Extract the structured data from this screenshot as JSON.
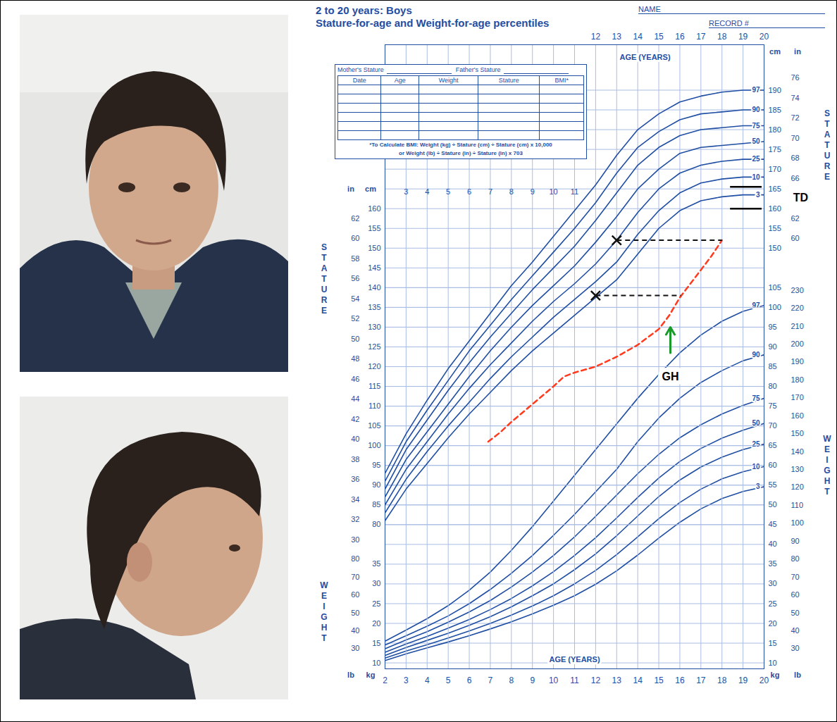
{
  "chart_data": [
    {
      "type": "line",
      "title": "2 to 20 years: Boys",
      "subtitle": "Stature-for-age and Weight-for-age percentiles",
      "name_field": "NAME",
      "record_field": "RECORD #",
      "record_table": {
        "parents": [
          "Mother's Stature",
          "Father's Stature"
        ],
        "columns": [
          "Date",
          "Age",
          "Weight",
          "Stature",
          "BMI*"
        ],
        "note": [
          "*To Calculate BMI: Weight (kg) ÷ Stature (cm) ÷ Stature (cm) x 10,000",
          "or Weight (lb) ÷ Stature (in) ÷ Stature (in) x 703"
        ]
      },
      "x_label": "AGE (YEARS)",
      "y_label": "STATURE",
      "unit_labels": {
        "left": [
          "in",
          "cm"
        ],
        "right": [
          "cm",
          "in"
        ]
      },
      "xlim": [
        2,
        20
      ],
      "xticks": [
        2,
        3,
        4,
        5,
        6,
        7,
        8,
        9,
        10,
        11,
        12,
        13,
        14,
        15,
        16,
        17,
        18,
        19,
        20
      ],
      "x2ticks": [
        12,
        13,
        14,
        15,
        16,
        17,
        18,
        19,
        20
      ],
      "x3ticks": [
        3,
        4,
        5,
        6,
        7,
        8,
        9,
        10,
        11
      ],
      "ylim": [
        43.5,
        201.5
      ],
      "yticks": [
        80,
        85,
        90,
        95,
        100,
        105,
        110,
        115,
        120,
        125,
        130,
        135,
        140,
        145,
        150,
        155,
        160
      ],
      "y2ticks": [
        150,
        155,
        160,
        165,
        170,
        175,
        180,
        185,
        190
      ],
      "yticks_alt": [
        {
          "value": 76.2,
          "label": "30"
        },
        {
          "value": 81.28,
          "label": "32"
        },
        {
          "value": 86.36,
          "label": "34"
        },
        {
          "value": 91.44,
          "label": "36"
        },
        {
          "value": 96.52,
          "label": "38"
        },
        {
          "value": 101.6,
          "label": "40"
        },
        {
          "value": 106.68,
          "label": "42"
        },
        {
          "value": 111.76,
          "label": "44"
        },
        {
          "value": 116.84,
          "label": "46"
        },
        {
          "value": 121.92,
          "label": "48"
        },
        {
          "value": 127,
          "label": "50"
        },
        {
          "value": 132.08,
          "label": "52"
        },
        {
          "value": 137.16,
          "label": "54"
        },
        {
          "value": 142.24,
          "label": "56"
        },
        {
          "value": 147.32,
          "label": "58"
        },
        {
          "value": 152.4,
          "label": "60"
        },
        {
          "value": 157.48,
          "label": "62"
        }
      ],
      "y2ticks_alt": [
        {
          "value": 152.4,
          "label": "60"
        },
        {
          "value": 157.48,
          "label": "62"
        },
        {
          "value": 167.64,
          "label": "66"
        },
        {
          "value": 172.72,
          "label": "68"
        },
        {
          "value": 177.8,
          "label": "70"
        },
        {
          "value": 182.88,
          "label": "72"
        },
        {
          "value": 187.96,
          "label": "74"
        },
        {
          "value": 193.04,
          "label": "76"
        }
      ],
      "grid": true,
      "x": [
        2,
        3,
        4,
        5,
        6,
        7,
        8,
        9,
        10,
        11,
        12,
        13,
        14,
        15,
        16,
        17,
        18,
        19,
        20
      ],
      "series": [
        {
          "name": "97",
          "color": "#1f4ea3",
          "values": [
            93,
            103,
            111.5,
            119.5,
            126.5,
            133.5,
            140.5,
            146.5,
            153,
            159.5,
            166,
            173.5,
            180,
            184,
            187,
            188.5,
            189.5,
            190,
            190
          ]
        },
        {
          "name": "90",
          "color": "#1f4ea3",
          "values": [
            91,
            101,
            109,
            116.5,
            124,
            130.5,
            137,
            143,
            149,
            155,
            161.5,
            169,
            175.5,
            179.5,
            182.5,
            184,
            184.5,
            185,
            185
          ]
        },
        {
          "name": "75",
          "color": "#1f4ea3",
          "values": [
            89,
            99,
            106.5,
            114,
            121,
            127.5,
            133.5,
            139.5,
            145,
            150.5,
            157,
            164,
            171,
            175.5,
            178.5,
            180,
            180.5,
            181,
            181
          ]
        },
        {
          "name": "50",
          "color": "#1f4ea3",
          "values": [
            87,
            96.5,
            103.5,
            110.5,
            117.5,
            124,
            130,
            135.5,
            140.5,
            145.5,
            151.5,
            158,
            165,
            170,
            174,
            175.5,
            176,
            176.5,
            177
          ]
        },
        {
          "name": "25",
          "color": "#1f4ea3",
          "values": [
            85,
            94,
            101,
            108,
            114.5,
            120.5,
            126,
            131.5,
            136.5,
            141,
            146,
            152,
            159,
            165,
            169,
            171,
            172,
            172.5,
            172.5
          ]
        },
        {
          "name": "10",
          "color": "#1f4ea3",
          "values": [
            83,
            91.5,
            98.5,
            105,
            111,
            117,
            122.5,
            127.5,
            132.5,
            137,
            141.5,
            146.5,
            153.5,
            159.5,
            164,
            166.5,
            167.5,
            168,
            168
          ]
        },
        {
          "name": "3",
          "color": "#1f4ea3",
          "values": [
            81,
            89,
            95.5,
            102,
            108,
            113.5,
            119,
            124,
            128.5,
            133,
            137.5,
            142,
            148.5,
            155,
            159.5,
            162,
            163,
            163.5,
            163.5
          ]
        }
      ],
      "patient": {
        "color": "#ff3b1f",
        "line_style": "dashed",
        "x": [
          6.9,
          7.5,
          8,
          9,
          10,
          10.5,
          11,
          12,
          13,
          14,
          15,
          15.5,
          16,
          16.5,
          17,
          17.5,
          18
        ],
        "values": [
          101,
          103.5,
          106,
          110.5,
          115,
          117.5,
          118.5,
          120,
          122.5,
          125.5,
          129.5,
          133,
          137.5,
          141,
          144.5,
          148,
          152
        ]
      },
      "bone_age": {
        "marker": "x",
        "line_style": "dashed",
        "color": "#111111",
        "points": [
          {
            "x": 12,
            "y": 138,
            "x_end": 16.05
          },
          {
            "x": 13,
            "y": 152,
            "x_end": 18
          }
        ]
      },
      "target_range": {
        "label": "TD",
        "values": [
          160,
          165.5
        ],
        "x": [
          18.4,
          19.9
        ],
        "color": "#000000"
      },
      "annotations": [
        {
          "text": "GH",
          "x": 15.55,
          "y": [
            123.5,
            130
          ],
          "label_y": 117.5,
          "color": "#1a9a2a"
        }
      ]
    },
    {
      "type": "line",
      "y_label": "WEIGHT",
      "unit_labels": {
        "left": [
          "lb",
          "kg"
        ],
        "right": [
          "kg",
          "lb"
        ]
      },
      "xlim": [
        2,
        20
      ],
      "ylim": [
        8.5,
        166.5
      ],
      "yticks": [
        10,
        15,
        20,
        25,
        30,
        35
      ],
      "y2ticks": [
        10,
        15,
        20,
        25,
        30,
        35,
        40,
        45,
        50,
        55,
        60,
        65,
        70,
        75,
        80,
        85,
        90,
        95,
        100,
        105
      ],
      "yticks_alt": [
        {
          "value": 13.61,
          "label": "30"
        },
        {
          "value": 18.14,
          "label": "40"
        },
        {
          "value": 22.68,
          "label": "50"
        },
        {
          "value": 27.22,
          "label": "60"
        },
        {
          "value": 31.75,
          "label": "70"
        },
        {
          "value": 36.29,
          "label": "80"
        }
      ],
      "y2ticks_alt": [
        {
          "value": 13.61,
          "label": "30"
        },
        {
          "value": 18.14,
          "label": "40"
        },
        {
          "value": 22.68,
          "label": "50"
        },
        {
          "value": 27.22,
          "label": "60"
        },
        {
          "value": 31.75,
          "label": "70"
        },
        {
          "value": 36.29,
          "label": "80"
        },
        {
          "value": 40.82,
          "label": "90"
        },
        {
          "value": 45.36,
          "label": "100"
        },
        {
          "value": 49.9,
          "label": "110"
        },
        {
          "value": 54.43,
          "label": "120"
        },
        {
          "value": 58.97,
          "label": "130"
        },
        {
          "value": 63.5,
          "label": "140"
        },
        {
          "value": 68.04,
          "label": "150"
        },
        {
          "value": 72.57,
          "label": "160"
        },
        {
          "value": 77.11,
          "label": "170"
        },
        {
          "value": 81.65,
          "label": "180"
        },
        {
          "value": 86.18,
          "label": "190"
        },
        {
          "value": 90.72,
          "label": "200"
        },
        {
          "value": 95.25,
          "label": "210"
        },
        {
          "value": 99.79,
          "label": "220"
        },
        {
          "value": 104.33,
          "label": "230"
        }
      ],
      "grid": true,
      "x": [
        2,
        3,
        4,
        5,
        6,
        7,
        8,
        9,
        10,
        11,
        12,
        13,
        14,
        15,
        16,
        17,
        18,
        19,
        20
      ],
      "series": [
        {
          "name": "97",
          "color": "#1f4ea3",
          "values": [
            15.5,
            18.3,
            21.2,
            24.5,
            28.4,
            33,
            38.5,
            44.5,
            51,
            57.5,
            64,
            70.5,
            77,
            83,
            88.5,
            93,
            96.5,
            99,
            100.5
          ]
        },
        {
          "name": "90",
          "color": "#1f4ea3",
          "values": [
            14.5,
            16.9,
            19.3,
            21.9,
            25,
            28.6,
            32.7,
            37.2,
            42.3,
            47.6,
            53.3,
            59,
            66,
            72,
            77,
            81,
            84,
            86.5,
            88
          ]
        },
        {
          "name": "75",
          "color": "#1f4ea3",
          "values": [
            13.6,
            15.8,
            17.9,
            20.3,
            22.9,
            25.8,
            29.2,
            33,
            37.2,
            41.9,
            47.1,
            52.5,
            57.9,
            62.8,
            67,
            70.3,
            73,
            75.2,
            77
          ]
        },
        {
          "name": "50",
          "color": "#1f4ea3",
          "values": [
            12.7,
            14.8,
            16.7,
            18.8,
            21,
            23.5,
            26.3,
            29.5,
            33.1,
            37.2,
            41.7,
            46.7,
            51.9,
            56.8,
            61,
            64.3,
            66.9,
            68.9,
            70.6
          ]
        },
        {
          "name": "25",
          "color": "#1f4ea3",
          "values": [
            11.9,
            13.9,
            15.7,
            17.5,
            19.5,
            21.7,
            24.2,
            27,
            30,
            33.6,
            37.6,
            42.2,
            47.2,
            52.1,
            56.3,
            59.6,
            62.1,
            64,
            65.4
          ]
        },
        {
          "name": "10",
          "color": "#1f4ea3",
          "values": [
            11.2,
            13,
            14.6,
            16.3,
            18.1,
            20,
            22.1,
            24.4,
            27,
            30,
            33.4,
            37.4,
            41.9,
            46.5,
            50.6,
            54,
            56.6,
            58.4,
            59.7
          ]
        },
        {
          "name": "3",
          "color": "#1f4ea3",
          "values": [
            10.6,
            12.3,
            13.8,
            15.3,
            16.9,
            18.6,
            20.4,
            22.4,
            24.6,
            27,
            29.9,
            33.3,
            37.3,
            41.6,
            45.6,
            49,
            51.6,
            53.4,
            54.6
          ]
        }
      ]
    }
  ]
}
